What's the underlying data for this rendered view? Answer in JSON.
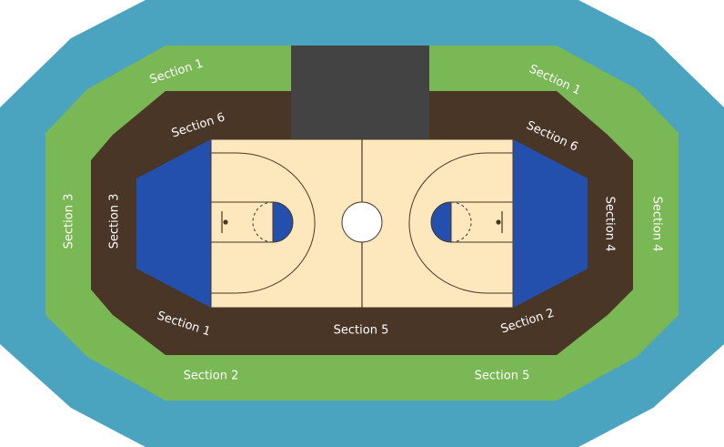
{
  "venue": {
    "colors": {
      "outer_ring": "#4aa3bf",
      "middle_ring": "#7ab755",
      "inner_ring": "#4a3627",
      "court": "#fde7bd",
      "court_lines": "#4a3627",
      "baseline_seats": "#2450ad",
      "tunnel": "#434343",
      "center_circle": "#ffffff",
      "label": "#ffffff"
    },
    "labels": {
      "outer_left": "Section 3",
      "outer_right": "Section 4",
      "middle_top_left": "Section 1",
      "middle_top_right": "Section 1",
      "middle_bottom_left": "Section 2",
      "middle_bottom_right": "Section 5",
      "inner_top_left": "Section 6",
      "inner_top_right": "Section 6",
      "inner_left": "Section 3",
      "inner_right": "Section 4",
      "inner_bottom_left": "Section 1",
      "inner_bottom_center": "Section 5",
      "inner_bottom_right": "Section 2"
    }
  }
}
